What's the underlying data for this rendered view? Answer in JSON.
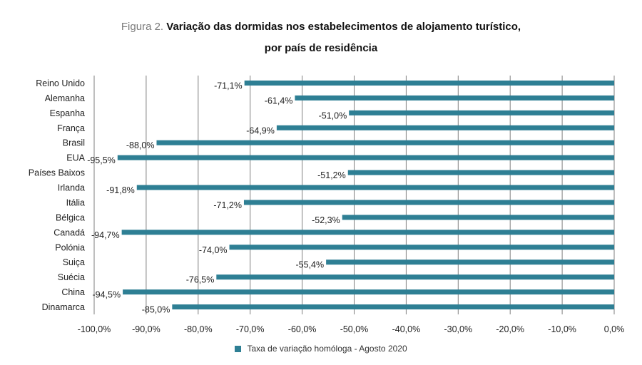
{
  "title": {
    "prefix": "Figura 2.",
    "line1": "Variação das dormidas nos estabelecimentos de alojamento turístico,",
    "line2": "por país de residência"
  },
  "colors": {
    "bar": "#2e7f94",
    "grid": "#7f7f7f",
    "text": "#222222"
  },
  "chart_data": {
    "type": "bar",
    "orientation": "horizontal",
    "categories": [
      "Reino Unido",
      "Alemanha",
      "Espanha",
      "França",
      "Brasil",
      "EUA",
      "Países Baixos",
      "Irlanda",
      "Itália",
      "Bélgica",
      "Canadá",
      "Polónia",
      "Suiça",
      "Suécia",
      "China",
      "Dinamarca"
    ],
    "values": [
      -71.1,
      -61.4,
      -51.0,
      -64.9,
      -88.0,
      -95.5,
      -51.2,
      -91.8,
      -71.2,
      -52.3,
      -94.7,
      -74.0,
      -55.4,
      -76.5,
      -94.5,
      -85.0
    ],
    "data_labels": [
      "-71,1%",
      "-61,4%",
      "-51,0%",
      "-64,9%",
      "-88,0%",
      "-95,5%",
      "-51,2%",
      "-91,8%",
      "-71,2%",
      "-52,3%",
      "-94,7%",
      "-74,0%",
      "-55,4%",
      "-76,5%",
      "-94,5%",
      "-85,0%"
    ],
    "xlim": [
      -100,
      0
    ],
    "xticks": [
      -100,
      -90,
      -80,
      -70,
      -60,
      -50,
      -40,
      -30,
      -20,
      -10,
      0
    ],
    "xtick_labels": [
      "-100,0%",
      "-90,0%",
      "-80,0%",
      "-70,0%",
      "-60,0%",
      "-50,0%",
      "-40,0%",
      "-30,0%",
      "-20,0%",
      "-10,0%",
      "0,0%"
    ],
    "grid": true,
    "legend": {
      "position": "bottom",
      "entries": [
        "Taxa de variação homóloga - Agosto  2020"
      ]
    },
    "xlabel": "",
    "ylabel": ""
  }
}
